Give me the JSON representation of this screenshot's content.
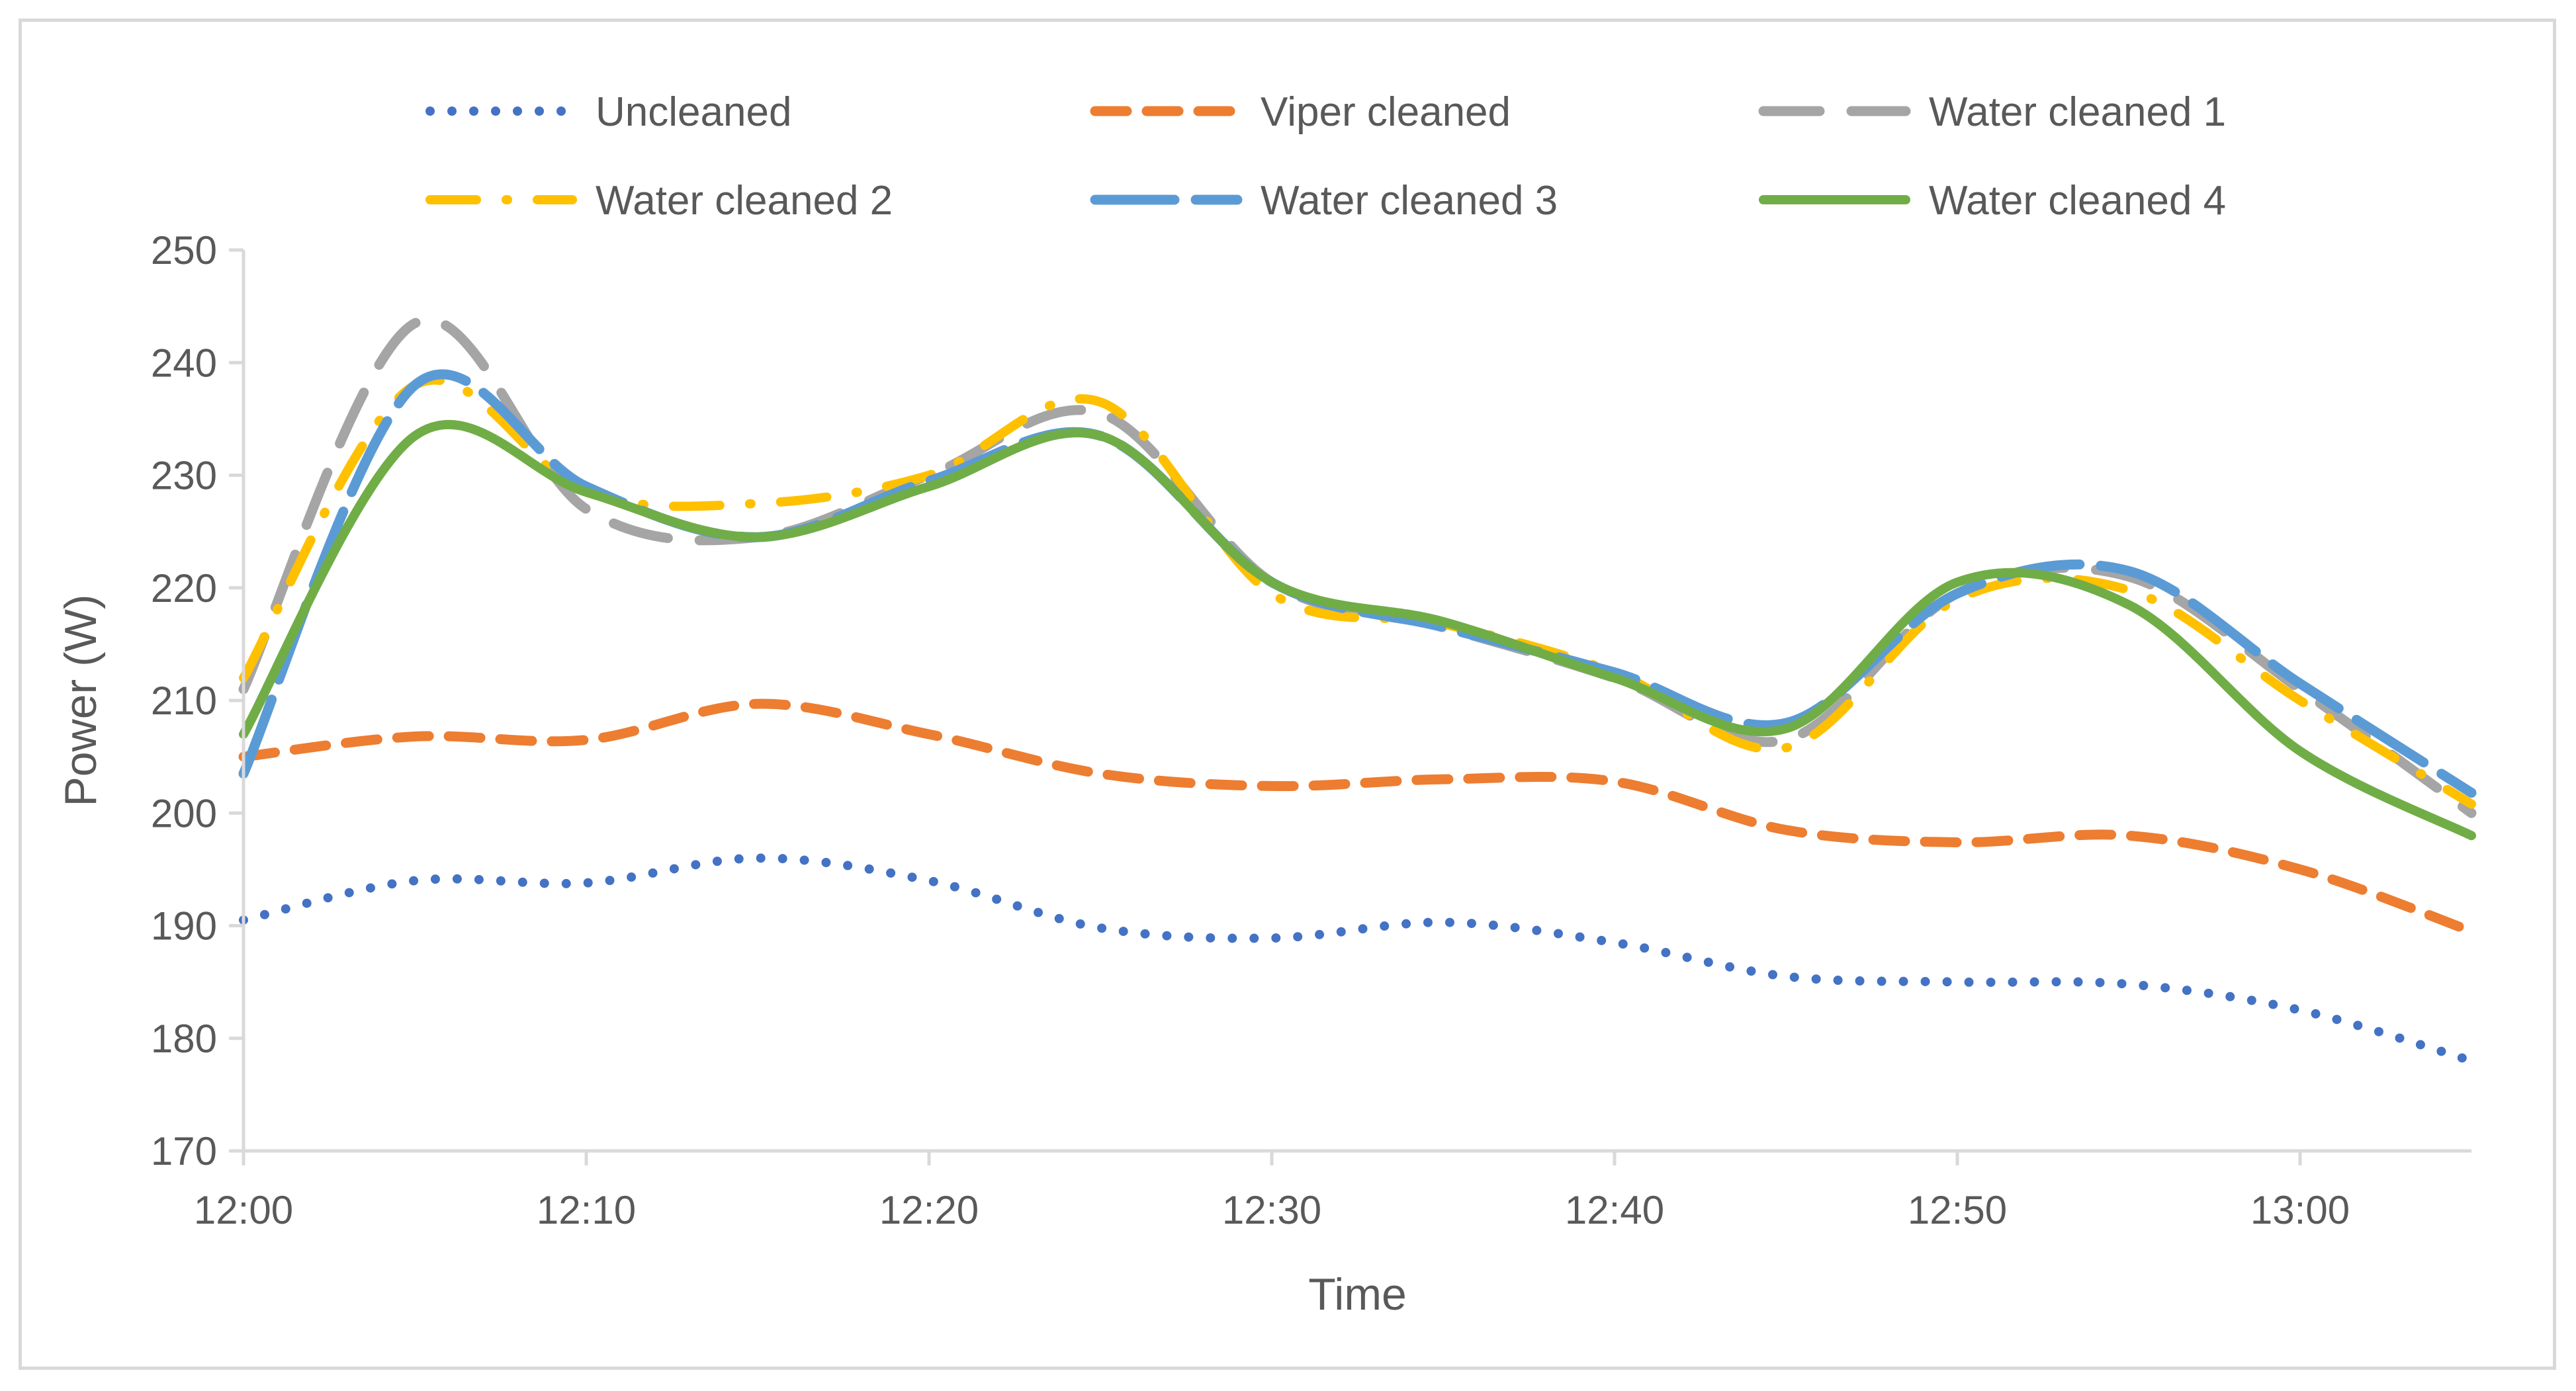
{
  "chart_data": {
    "type": "line",
    "title": "",
    "xlabel": "Time",
    "ylabel": "Power (W)",
    "ylim": [
      170,
      250
    ],
    "yticks": [
      "170",
      "180",
      "190",
      "200",
      "210",
      "220",
      "230",
      "240",
      "250"
    ],
    "xlim": [
      0,
      65
    ],
    "xticks": [
      {
        "value": 0,
        "label": "12:00"
      },
      {
        "value": 10,
        "label": "12:10"
      },
      {
        "value": 20,
        "label": "12:20"
      },
      {
        "value": 30,
        "label": "12:30"
      },
      {
        "value": 40,
        "label": "12:40"
      },
      {
        "value": 50,
        "label": "12:50"
      },
      {
        "value": 60,
        "label": "13:00"
      }
    ],
    "grid": false,
    "legend_position": "top",
    "x": [
      0,
      5,
      10,
      15,
      20,
      25,
      30,
      35,
      40,
      45,
      50,
      55,
      60,
      65
    ],
    "series": [
      {
        "name": "Uncleaned",
        "color": "#4472c4",
        "style": "dotted",
        "values": [
          190.5,
          194,
          193.8,
          196,
          194,
          189.8,
          188.9,
          190.3,
          188.5,
          185.5,
          185,
          184.8,
          182.5,
          178
        ]
      },
      {
        "name": "Viper cleaned",
        "color": "#ed7d31",
        "style": "dashed",
        "values": [
          205,
          206.8,
          206.5,
          209.7,
          207,
          203.5,
          202.4,
          203,
          202.8,
          198.5,
          197.4,
          198,
          195,
          189.5
        ]
      },
      {
        "name": "Water cleaned 1",
        "color": "#a5a5a5",
        "style": "longdash",
        "values": [
          211,
          243.5,
          227,
          224.5,
          230,
          235.5,
          220.5,
          216.5,
          212,
          206.5,
          219.5,
          221,
          211,
          200
        ]
      },
      {
        "name": "Water cleaned 2",
        "color": "#ffc000",
        "style": "dashdot",
        "values": [
          212,
          238,
          228.5,
          227.5,
          230,
          236.5,
          219.5,
          216.8,
          212.5,
          205.8,
          219,
          219.8,
          210,
          200.8
        ]
      },
      {
        "name": "Water cleaned 3",
        "color": "#5b9bd5",
        "style": "solid-thick",
        "values": [
          203.5,
          238,
          229,
          224.5,
          229.5,
          233.5,
          220.5,
          216.5,
          212.5,
          208,
          219.5,
          221.5,
          211.5,
          201.8
        ]
      },
      {
        "name": "Water cleaned 4",
        "color": "#70ad47",
        "style": "solid",
        "values": [
          207,
          233.5,
          228.5,
          224.5,
          229,
          233.5,
          220.5,
          217,
          212,
          207.5,
          220.5,
          218.5,
          205.5,
          198
        ]
      }
    ]
  }
}
